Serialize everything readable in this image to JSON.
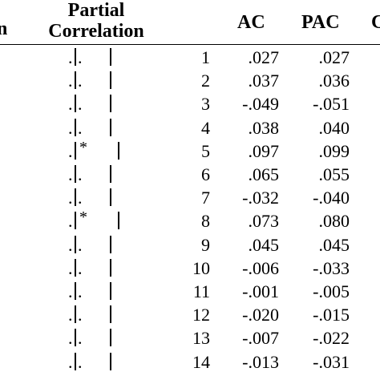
{
  "headers": {
    "left_fragment": "n",
    "partial_line1": "Partial",
    "partial_line2": "Correlation",
    "ac": "AC",
    "pac": "PAC",
    "right_fragment": "C"
  },
  "rows": [
    {
      "lag": "1",
      "ac": ".027",
      "pac": ".027",
      "significant": false,
      "bar_extent": 0.0
    },
    {
      "lag": "2",
      "ac": ".037",
      "pac": ".036",
      "significant": false,
      "bar_extent": 0.0
    },
    {
      "lag": "3",
      "ac": "-.049",
      "pac": "-.051",
      "significant": false,
      "bar_extent": 0.0
    },
    {
      "lag": "4",
      "ac": ".038",
      "pac": ".040",
      "significant": false,
      "bar_extent": 0.0
    },
    {
      "lag": "5",
      "ac": ".097",
      "pac": ".099",
      "significant": true,
      "star": "*"
    },
    {
      "lag": "6",
      "ac": ".065",
      "pac": ".055",
      "significant": false,
      "bar_extent": 0.0
    },
    {
      "lag": "7",
      "ac": "-.032",
      "pac": "-.040",
      "significant": false,
      "bar_extent": 0.0
    },
    {
      "lag": "8",
      "ac": ".073",
      "pac": ".080",
      "significant": true,
      "star": "*"
    },
    {
      "lag": "9",
      "ac": ".045",
      "pac": ".045",
      "significant": false,
      "bar_extent": 0.0
    },
    {
      "lag": "10",
      "ac": "-.006",
      "pac": "-.033",
      "significant": false,
      "bar_extent": 0.0
    },
    {
      "lag": "11",
      "ac": "-.001",
      "pac": "-.005",
      "significant": false,
      "bar_extent": 0.0
    },
    {
      "lag": "12",
      "ac": "-.020",
      "pac": "-.015",
      "significant": false,
      "bar_extent": 0.0
    },
    {
      "lag": "13",
      "ac": "-.007",
      "pac": "-.022",
      "significant": false,
      "bar_extent": 0.0
    },
    {
      "lag": "14",
      "ac": "-.013",
      "pac": "-.031",
      "significant": false,
      "bar_extent": 0.0
    }
  ],
  "glyphs": {
    "dot": ".",
    "dot_after": "."
  }
}
